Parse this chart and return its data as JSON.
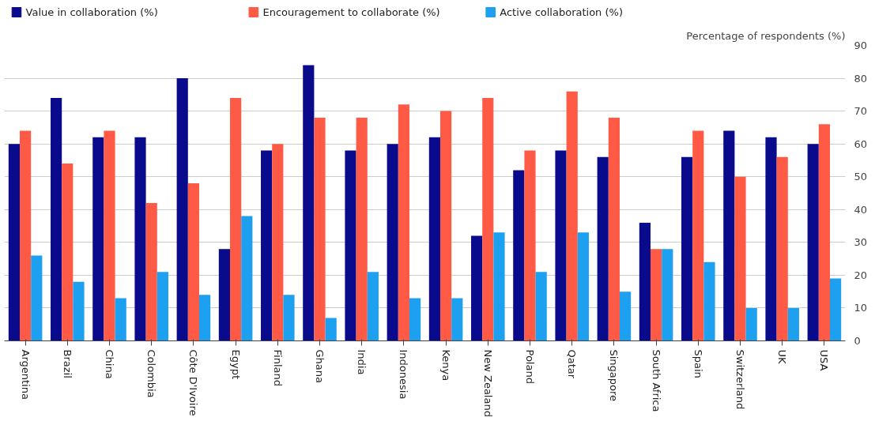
{
  "chart_data": {
    "type": "bar",
    "ylabel": "Percentage of respondents (%)",
    "categories": [
      "Argentina",
      "Brazil",
      "China",
      "Colombia",
      "Côte D'Ivoire",
      "Egypt",
      "Finland",
      "Ghana",
      "India",
      "Indonesia",
      "Kenya",
      "New Zealand",
      "Poland",
      "Qatar",
      "Singapore",
      "South Africa",
      "Spain",
      "Switzerland",
      "UK",
      "USA"
    ],
    "series": [
      {
        "name": "Value in collaboration (%)",
        "color": "#0a0a8c",
        "values": [
          60,
          74,
          62,
          62,
          80,
          28,
          58,
          84,
          58,
          60,
          62,
          32,
          52,
          58,
          56,
          36,
          56,
          64,
          62,
          60
        ]
      },
      {
        "name": "Encouragement to collaborate (%)",
        "color": "#ff5a45",
        "values": [
          64,
          54,
          64,
          42,
          48,
          74,
          60,
          68,
          68,
          72,
          70,
          74,
          58,
          76,
          68,
          28,
          64,
          50,
          56,
          66
        ]
      },
      {
        "name": "Active collaboration (%)",
        "color": "#1ea0f0",
        "values": [
          26,
          18,
          13,
          21,
          14,
          38,
          14,
          7,
          21,
          13,
          13,
          33,
          21,
          33,
          15,
          28,
          24,
          10,
          10,
          19
        ]
      }
    ],
    "ylim": [
      0,
      90
    ],
    "yticks": [
      0,
      10,
      20,
      30,
      40,
      50,
      60,
      70,
      80,
      90
    ],
    "grid": "y",
    "legend": "top left"
  }
}
